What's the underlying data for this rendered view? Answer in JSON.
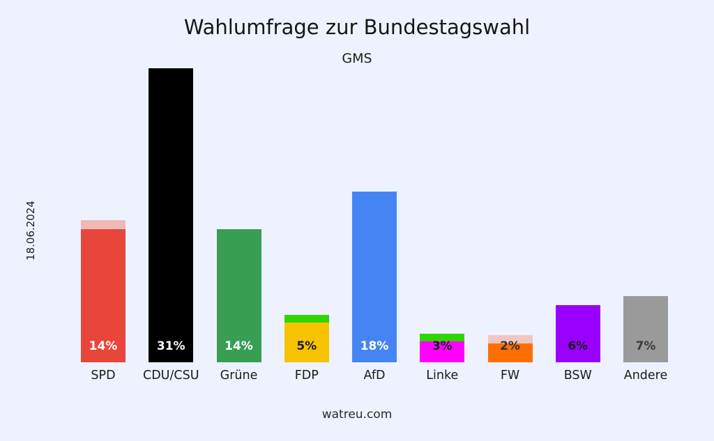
{
  "page": {
    "background": "#eef2ff"
  },
  "chart_data": {
    "type": "bar",
    "title": "Wahlumfrage zur Bundestagswahl",
    "subtitle": "GMS",
    "date_label": "18.06.2024",
    "source": "watreu.com",
    "xlabel": "",
    "ylabel": "",
    "ylim": [
      0,
      31
    ],
    "grid": false,
    "legend": false,
    "categories": [
      "SPD",
      "CDU/CSU",
      "Grüne",
      "FDP",
      "AfD",
      "Linke",
      "FW",
      "BSW",
      "Andere"
    ],
    "values": [
      14,
      31,
      14,
      5,
      18,
      3,
      2,
      6,
      7
    ],
    "value_labels": [
      "14%",
      "31%",
      "14%",
      "5%",
      "18%",
      "3%",
      "2%",
      "6%",
      "7%"
    ],
    "bar_colors": [
      "#e8463b",
      "#000000",
      "#389e54",
      "#f7c300",
      "#4585f3",
      "#ff00ff",
      "#ff6f00",
      "#9900ff",
      "#9a9a9a"
    ],
    "value_label_colors": [
      "#ffffff",
      "#ffffff",
      "#ffffff",
      "#1a1a1a",
      "#ffffff",
      "#1a1a1a",
      "#333333",
      "#1a1a1a",
      "#3a3a3a"
    ],
    "caps": [
      {
        "color": "#efb9b6",
        "pct": 1.0,
        "mode": "above"
      },
      null,
      null,
      {
        "color": "#30d500",
        "pct": 0.8,
        "mode": "inset"
      },
      null,
      {
        "color": "#30d500",
        "pct": 0.8,
        "mode": "inset"
      },
      {
        "color": "#f2c6c3",
        "pct": 0.9,
        "mode": "above"
      },
      null,
      null
    ]
  }
}
